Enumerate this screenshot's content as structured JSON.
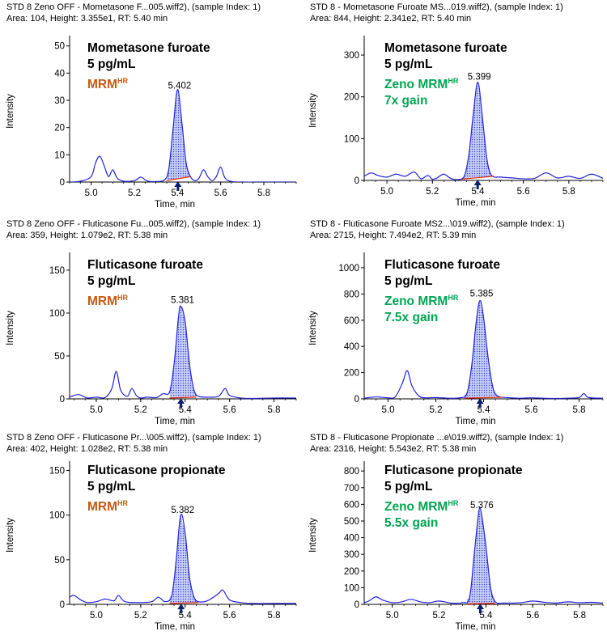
{
  "colors": {
    "trace": "#2222dd",
    "peak_fill": "#8899ee",
    "baseline": "#ee2200",
    "marker": "#0b1f6e",
    "mrm_label": "#c55a11",
    "zeno_label": "#00a651"
  },
  "chart_data": [
    {
      "type": "line",
      "header_line1": "STD 8 Zeno OFF - Mometasone F...005.wiff2), (sample Index: 1)",
      "header_line2": "Area: 104, Height: 3.355e1, RT: 5.40 min",
      "compound": "Mometasone furoate",
      "concentration": "5 pg/mL",
      "method": "MRM",
      "method_sup": "HR",
      "gain": "",
      "method_color": "mrm",
      "xlabel": "Time, min",
      "ylabel": "Intensity",
      "xlim": [
        4.9,
        5.95
      ],
      "ylim": [
        0,
        52
      ],
      "xticks": [
        5.0,
        5.2,
        5.4,
        5.6,
        5.8
      ],
      "xtick_labels": [
        "5.0",
        "5.2",
        "5.4",
        "5.6",
        "5.8"
      ],
      "yticks": [
        0,
        10,
        20,
        30,
        40,
        50
      ],
      "ytick_labels": [
        "0",
        "10",
        "20",
        "30",
        "40",
        "50"
      ],
      "peak_label": "5.402",
      "peak_rt": 5.402,
      "peak_start": 5.35,
      "peak_end": 5.46,
      "baseline_y": [
        0.5,
        2.0
      ],
      "x": [
        4.9,
        4.95,
        5.0,
        5.02,
        5.04,
        5.06,
        5.08,
        5.1,
        5.12,
        5.15,
        5.2,
        5.23,
        5.26,
        5.3,
        5.34,
        5.36,
        5.38,
        5.4,
        5.42,
        5.44,
        5.46,
        5.48,
        5.5,
        5.52,
        5.54,
        5.56,
        5.58,
        5.6,
        5.62,
        5.65,
        5.7,
        5.8,
        5.95
      ],
      "y": [
        0,
        0.3,
        2,
        7,
        9.5,
        6,
        2,
        4.5,
        1.5,
        0.3,
        0.5,
        1.8,
        0.4,
        0.2,
        0.8,
        5,
        20,
        34,
        22,
        7,
        2,
        0.5,
        1.5,
        4.5,
        2,
        0.5,
        2,
        5.5,
        1.5,
        0.2,
        0,
        0,
        0
      ]
    },
    {
      "type": "line",
      "header_line1": "STD 8 - Mometasone Furoate MS...019.wiff2), (sample Index: 1)",
      "header_line2": "Area: 844, Height: 2.341e2, RT: 5.40 min",
      "compound": "Mometasone furoate",
      "concentration": "5 pg/mL",
      "method": "Zeno MRM",
      "method_sup": "HR",
      "gain": "7x gain",
      "method_color": "zeno",
      "xlabel": "Time, min",
      "ylabel": "Intensity",
      "xlim": [
        4.9,
        5.95
      ],
      "ylim": [
        0,
        335
      ],
      "xticks": [
        5.0,
        5.2,
        5.4,
        5.6,
        5.8
      ],
      "xtick_labels": [
        "5.0",
        "5.2",
        "5.4",
        "5.6",
        "5.8"
      ],
      "yticks": [
        0,
        100,
        200,
        300
      ],
      "ytick_labels": [
        "0",
        "100",
        "200",
        "300"
      ],
      "peak_label": "5.399",
      "peak_rt": 5.399,
      "peak_start": 5.33,
      "peak_end": 5.47,
      "baseline_y": [
        3,
        10
      ],
      "x": [
        4.9,
        4.93,
        4.96,
        5.0,
        5.04,
        5.08,
        5.12,
        5.15,
        5.18,
        5.2,
        5.22,
        5.25,
        5.28,
        5.31,
        5.34,
        5.36,
        5.38,
        5.4,
        5.42,
        5.44,
        5.46,
        5.5,
        5.55,
        5.6,
        5.65,
        5.7,
        5.75,
        5.8,
        5.85,
        5.9,
        5.95
      ],
      "y": [
        10,
        18,
        12,
        8,
        15,
        10,
        20,
        4,
        12,
        3,
        6,
        15,
        5,
        2,
        10,
        60,
        160,
        235,
        150,
        50,
        12,
        8,
        6,
        4,
        5,
        18,
        6,
        10,
        5,
        15,
        5
      ]
    },
    {
      "type": "line",
      "header_line1": "STD 8 Zeno OFF - Fluticasone Fu...005.wiff2), (sample Index: 1)",
      "header_line2": "Area: 359, Height: 1.079e2, RT: 5.38 min",
      "compound": "Fluticasone furoate",
      "concentration": "5 pg/mL",
      "method": "MRM",
      "method_sup": "HR",
      "gain": "",
      "method_color": "mrm",
      "xlabel": "Time, min",
      "ylabel": "Intensity",
      "xlim": [
        4.88,
        5.9
      ],
      "ylim": [
        0,
        165
      ],
      "xticks": [
        5.0,
        5.2,
        5.4,
        5.6,
        5.8
      ],
      "xtick_labels": [
        "5.0",
        "5.2",
        "5.4",
        "5.6",
        "5.8"
      ],
      "yticks": [
        0,
        50,
        100,
        150
      ],
      "ytick_labels": [
        "0",
        "50",
        "100",
        "150"
      ],
      "peak_label": "5.381",
      "peak_rt": 5.381,
      "peak_start": 5.33,
      "peak_end": 5.45,
      "baseline_y": [
        1,
        2
      ],
      "x": [
        4.88,
        4.92,
        4.96,
        5.0,
        5.04,
        5.07,
        5.09,
        5.11,
        5.14,
        5.16,
        5.18,
        5.2,
        5.23,
        5.27,
        5.3,
        5.33,
        5.35,
        5.37,
        5.38,
        5.4,
        5.42,
        5.44,
        5.46,
        5.5,
        5.55,
        5.58,
        5.6,
        5.65,
        5.7,
        5.8,
        5.9
      ],
      "y": [
        2,
        5,
        1,
        2,
        1.5,
        12,
        32,
        10,
        3,
        12,
        4,
        1,
        2,
        1.5,
        6,
        8,
        40,
        95,
        108,
        90,
        40,
        10,
        3,
        2,
        3,
        12,
        4,
        1,
        0.5,
        1,
        1
      ]
    },
    {
      "type": "line",
      "header_line1": "STD 8 - Fluticasone Furoate MS2...\\019.wiff2), (sample Index: 1)",
      "header_line2": "Area: 2715, Height: 7.494e2, RT: 5.39 min",
      "compound": "Fluticasone furoate",
      "concentration": "5 pg/mL",
      "method": "Zeno MRM",
      "method_sup": "HR",
      "gain": "7.5x gain",
      "method_color": "zeno",
      "xlabel": "Time, min",
      "ylabel": "Intensity",
      "xlim": [
        4.9,
        5.9
      ],
      "ylim": [
        0,
        1080
      ],
      "xticks": [
        5.0,
        5.2,
        5.4,
        5.6,
        5.8
      ],
      "xtick_labels": [
        "5.0",
        "5.2",
        "5.4",
        "5.6",
        "5.8"
      ],
      "yticks": [
        0,
        200,
        400,
        600,
        800,
        1000
      ],
      "ytick_labels": [
        "0",
        "200",
        "400",
        "600",
        "800",
        "1000"
      ],
      "peak_label": "5.385",
      "peak_rt": 5.385,
      "peak_start": 5.32,
      "peak_end": 5.48,
      "baseline_y": [
        5,
        12
      ],
      "x": [
        4.9,
        4.95,
        5.0,
        5.03,
        5.06,
        5.08,
        5.1,
        5.13,
        5.16,
        5.2,
        5.25,
        5.3,
        5.33,
        5.35,
        5.37,
        5.385,
        5.4,
        5.42,
        5.44,
        5.46,
        5.5,
        5.55,
        5.6,
        5.65,
        5.7,
        5.75,
        5.8,
        5.82,
        5.84,
        5.9
      ],
      "y": [
        5,
        15,
        8,
        15,
        120,
        215,
        100,
        20,
        8,
        10,
        5,
        8,
        40,
        250,
        600,
        750,
        620,
        300,
        80,
        20,
        10,
        5,
        8,
        5,
        3,
        5,
        10,
        40,
        10,
        5
      ]
    },
    {
      "type": "line",
      "header_line1": "STD 8 Zeno OFF - Fluticasone Pr...\\005.wiff2), (sample Index: 1)",
      "header_line2": "Area: 402, Height: 1.028e2, RT: 5.38 min",
      "compound": "Fluticasone propionate",
      "concentration": "5 pg/mL",
      "method": "MRM",
      "method_sup": "HR",
      "gain": "",
      "method_color": "mrm",
      "xlabel": "Time, min",
      "ylabel": "Intensity",
      "xlim": [
        4.88,
        5.9
      ],
      "ylim": [
        0,
        155
      ],
      "xticks": [
        5.0,
        5.2,
        5.4,
        5.6,
        5.8
      ],
      "xtick_labels": [
        "5.0",
        "5.2",
        "5.4",
        "5.6",
        "5.8"
      ],
      "yticks": [
        0,
        50,
        100,
        150
      ],
      "ytick_labels": [
        "0",
        "50",
        "100",
        "150"
      ],
      "peak_label": "5.382",
      "peak_rt": 5.382,
      "peak_start": 5.33,
      "peak_end": 5.46,
      "baseline_y": [
        1,
        2
      ],
      "x": [
        4.88,
        4.9,
        4.93,
        4.96,
        5.0,
        5.04,
        5.08,
        5.1,
        5.13,
        5.2,
        5.25,
        5.28,
        5.31,
        5.34,
        5.36,
        5.38,
        5.4,
        5.42,
        5.44,
        5.46,
        5.5,
        5.55,
        5.57,
        5.6,
        5.65,
        5.7,
        5.8,
        5.9
      ],
      "y": [
        8,
        10,
        5,
        2,
        3,
        6,
        4,
        10,
        3,
        2,
        3,
        8,
        3,
        10,
        50,
        100,
        80,
        30,
        8,
        3,
        4,
        12,
        16,
        5,
        2,
        1,
        1,
        1
      ]
    },
    {
      "type": "line",
      "header_line1": "STD 8 - Fluticasone Propionate ...e\\019.wiff2), (sample Index: 1)",
      "header_line2": "Area: 2316, Height: 5.543e2, RT: 5.38 min",
      "compound": "Fluticasone propionate",
      "concentration": "5 pg/mL",
      "method": "Zeno MRM",
      "method_sup": "HR",
      "gain": "5.5x gain",
      "method_color": "zeno",
      "xlabel": "Time, min",
      "ylabel": "Intensity",
      "xlim": [
        4.88,
        5.9
      ],
      "ylim": [
        0,
        830
      ],
      "xticks": [
        5.0,
        5.2,
        5.4,
        5.6,
        5.8
      ],
      "xtick_labels": [
        "5.0",
        "5.2",
        "5.4",
        "5.6",
        "5.8"
      ],
      "yticks": [
        0,
        100,
        200,
        300,
        400,
        500,
        600,
        700,
        800
      ],
      "ytick_labels": [
        "0",
        "100",
        "200",
        "300",
        "400",
        "500",
        "600",
        "700",
        "800"
      ],
      "peak_label": "5.376",
      "peak_rt": 5.376,
      "peak_start": 5.32,
      "peak_end": 5.44,
      "baseline_y": [
        3,
        6
      ],
      "x": [
        4.88,
        4.9,
        4.93,
        4.96,
        5.0,
        5.04,
        5.08,
        5.12,
        5.16,
        5.2,
        5.25,
        5.3,
        5.33,
        5.35,
        5.37,
        5.38,
        5.4,
        5.42,
        5.44,
        5.48,
        5.55,
        5.6,
        5.65,
        5.7,
        5.75,
        5.8,
        5.85,
        5.9
      ],
      "y": [
        10,
        20,
        45,
        25,
        10,
        15,
        30,
        15,
        10,
        20,
        8,
        10,
        40,
        300,
        560,
        550,
        350,
        100,
        15,
        8,
        10,
        20,
        12,
        8,
        15,
        10,
        12,
        8
      ]
    }
  ]
}
